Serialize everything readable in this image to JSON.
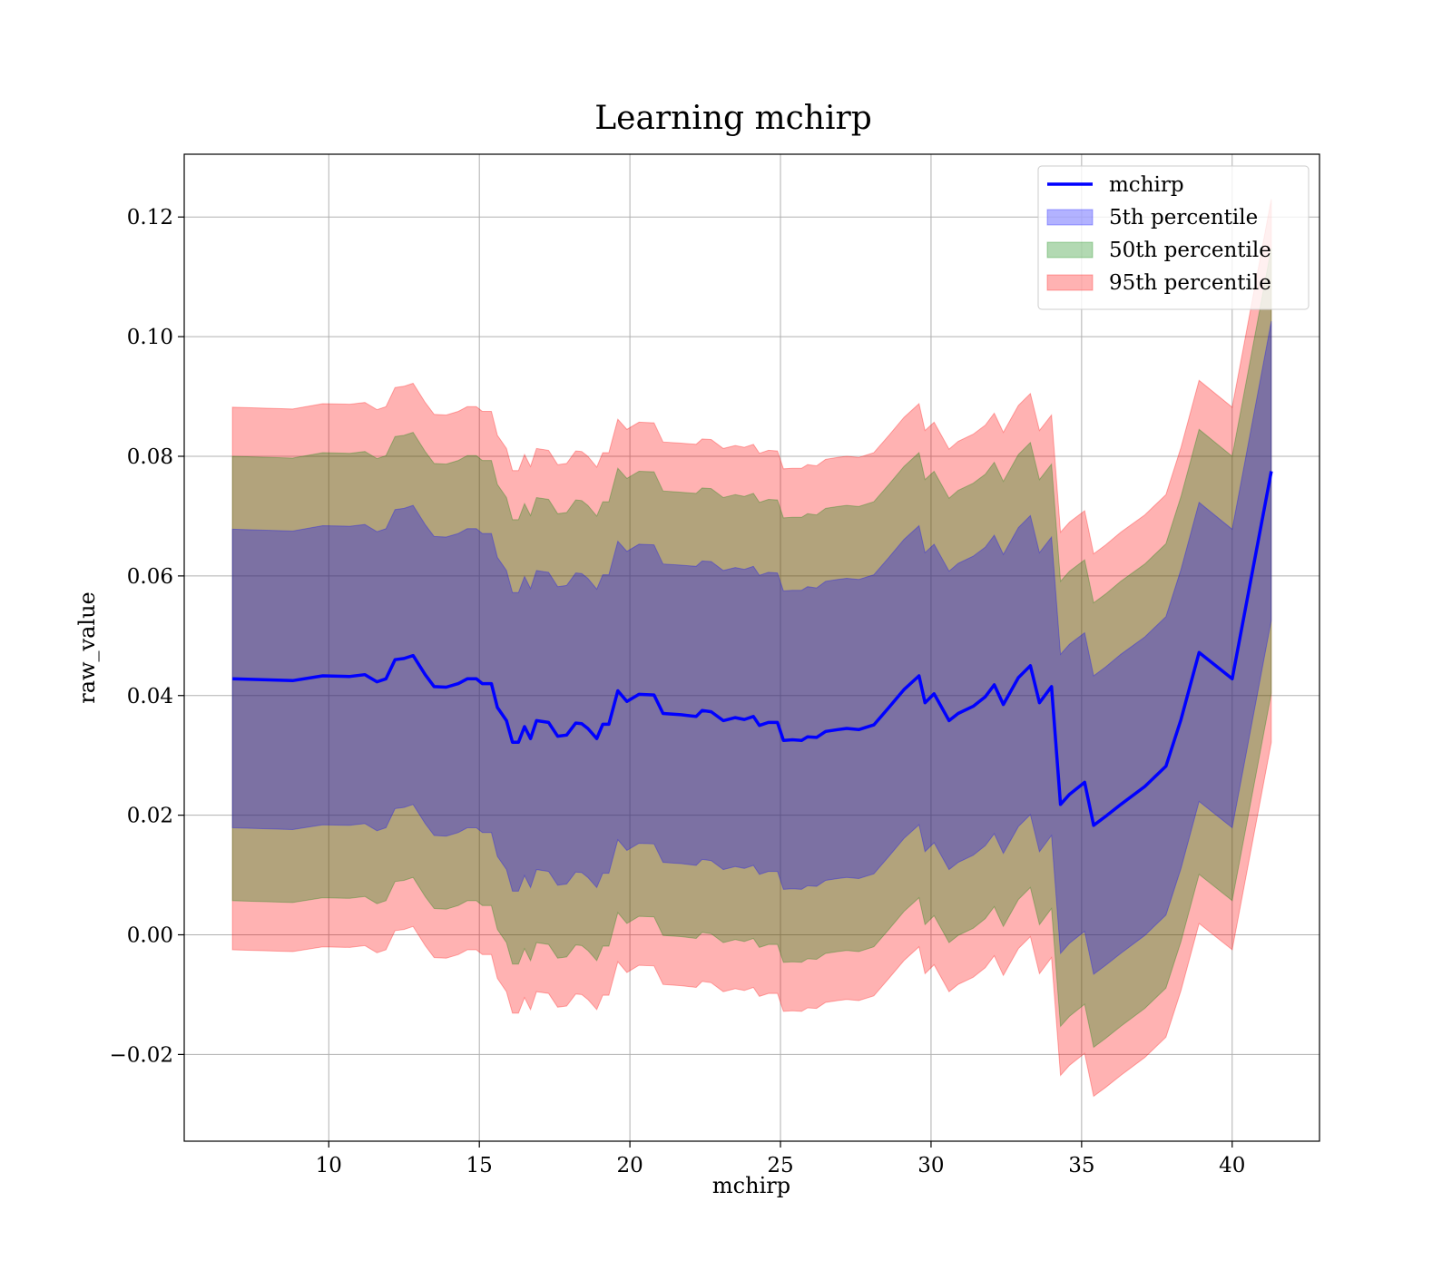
{
  "chart_data": {
    "type": "area",
    "title": "Learning mchirp",
    "xlabel": "mchirp",
    "ylabel": "raw_value",
    "xlim": [
      5.2,
      42.9
    ],
    "ylim": [
      -0.0345,
      0.1305
    ],
    "xticks": [
      10,
      15,
      20,
      25,
      30,
      35,
      40
    ],
    "yticks": [
      -0.02,
      0.0,
      0.02,
      0.04,
      0.06,
      0.08,
      0.1,
      0.12
    ],
    "ytick_labels": [
      "−0.02",
      "0.00",
      "0.02",
      "0.04",
      "0.06",
      "0.08",
      "0.10",
      "0.12"
    ],
    "grid": true,
    "legend_position": "top-right",
    "colors": {
      "line": "#0000ff",
      "band5": "#0000ff",
      "band50": "#008000",
      "band95": "#ff0000"
    },
    "band_alpha": 0.3,
    "legend": [
      {
        "key": "line",
        "label": "mchirp"
      },
      {
        "key": "band5",
        "label": "5th percentile"
      },
      {
        "key": "band50",
        "label": "50th percentile"
      },
      {
        "key": "band95",
        "label": "95th percentile"
      }
    ],
    "x": [
      6.8,
      8.8,
      9.8,
      10.7,
      11.2,
      11.6,
      11.9,
      12.2,
      12.5,
      12.8,
      13.2,
      13.5,
      13.9,
      14.3,
      14.6,
      14.9,
      15.1,
      15.4,
      15.6,
      15.9,
      16.1,
      16.3,
      16.5,
      16.7,
      16.9,
      17.3,
      17.6,
      17.9,
      18.2,
      18.4,
      18.6,
      18.9,
      19.1,
      19.3,
      19.6,
      19.9,
      20.3,
      20.8,
      21.1,
      21.7,
      22.2,
      22.4,
      22.7,
      23.1,
      23.5,
      23.8,
      24.1,
      24.3,
      24.6,
      24.9,
      25.1,
      25.4,
      25.7,
      25.9,
      26.2,
      26.5,
      26.9,
      27.2,
      27.6,
      28.1,
      28.6,
      29.1,
      29.6,
      29.8,
      30.1,
      30.6,
      30.9,
      31.4,
      31.8,
      32.1,
      32.4,
      32.9,
      33.3,
      33.6,
      34.0,
      34.3,
      34.6,
      35.1,
      35.4,
      35.8,
      36.3,
      37.1,
      37.8,
      38.3,
      38.9,
      40.0,
      41.3
    ],
    "series": [
      {
        "key": "line",
        "name": "mchirp",
        "values": [
          0.0428,
          0.0425,
          0.0433,
          0.0432,
          0.0435,
          0.0423,
          0.0428,
          0.046,
          0.0462,
          0.0467,
          0.0435,
          0.0415,
          0.0414,
          0.042,
          0.0428,
          0.0428,
          0.042,
          0.042,
          0.038,
          0.0358,
          0.0322,
          0.0322,
          0.0348,
          0.0328,
          0.0358,
          0.0355,
          0.0332,
          0.0334,
          0.0354,
          0.0353,
          0.0345,
          0.0328,
          0.0352,
          0.0352,
          0.0408,
          0.039,
          0.0402,
          0.0401,
          0.037,
          0.0368,
          0.0365,
          0.0375,
          0.0373,
          0.0358,
          0.0363,
          0.036,
          0.0365,
          0.035,
          0.0355,
          0.0355,
          0.0325,
          0.0326,
          0.0325,
          0.0331,
          0.033,
          0.034,
          0.0343,
          0.0345,
          0.0343,
          0.0351,
          0.038,
          0.041,
          0.0433,
          0.0388,
          0.0403,
          0.0358,
          0.037,
          0.0382,
          0.0398,
          0.0418,
          0.0385,
          0.043,
          0.045,
          0.0388,
          0.0415,
          0.0218,
          0.0235,
          0.0255,
          0.0183,
          0.0198,
          0.0218,
          0.0248,
          0.0282,
          0.036,
          0.0472,
          0.0428,
          0.0775
        ]
      },
      {
        "key": "band95",
        "name": "95th percentile",
        "upper": [
          0.0882,
          0.0879,
          0.0888,
          0.0887,
          0.089,
          0.0878,
          0.0883,
          0.0915,
          0.0917,
          0.0922,
          0.089,
          0.087,
          0.0869,
          0.0875,
          0.0883,
          0.0883,
          0.0875,
          0.0875,
          0.0835,
          0.0813,
          0.0776,
          0.0776,
          0.0803,
          0.0783,
          0.0813,
          0.081,
          0.0786,
          0.0788,
          0.0809,
          0.0808,
          0.08,
          0.0782,
          0.0806,
          0.0806,
          0.0862,
          0.0845,
          0.0857,
          0.0856,
          0.0824,
          0.0822,
          0.082,
          0.0829,
          0.0828,
          0.0813,
          0.0818,
          0.0815,
          0.082,
          0.0805,
          0.081,
          0.0809,
          0.0779,
          0.078,
          0.078,
          0.0786,
          0.0784,
          0.0795,
          0.0798,
          0.08,
          0.0798,
          0.0806,
          0.0835,
          0.0865,
          0.0888,
          0.0843,
          0.0857,
          0.0812,
          0.0825,
          0.0837,
          0.0852,
          0.0872,
          0.084,
          0.0885,
          0.0905,
          0.0843,
          0.0869,
          0.0673,
          0.069,
          0.0709,
          0.0637,
          0.0652,
          0.0673,
          0.0702,
          0.0736,
          0.0815,
          0.0927,
          0.0882,
          0.123
        ],
        "lower": [
          -0.0025,
          -0.0028,
          -0.002,
          -0.0021,
          -0.0018,
          -0.003,
          -0.0025,
          0.0007,
          0.0009,
          0.0014,
          -0.0018,
          -0.0038,
          -0.0039,
          -0.0033,
          -0.0025,
          -0.0025,
          -0.0033,
          -0.0033,
          -0.0073,
          -0.0095,
          -0.0131,
          -0.0131,
          -0.0105,
          -0.0125,
          -0.0095,
          -0.0098,
          -0.0121,
          -0.0119,
          -0.0099,
          -0.01,
          -0.0108,
          -0.0125,
          -0.0101,
          -0.0101,
          -0.0045,
          -0.0063,
          -0.0051,
          -0.0052,
          -0.0083,
          -0.0085,
          -0.0088,
          -0.0078,
          -0.008,
          -0.0095,
          -0.009,
          -0.0093,
          -0.0088,
          -0.0103,
          -0.0098,
          -0.0098,
          -0.0128,
          -0.0127,
          -0.0128,
          -0.0122,
          -0.0123,
          -0.0113,
          -0.011,
          -0.0108,
          -0.011,
          -0.0102,
          -0.0073,
          -0.0043,
          -0.002,
          -0.0065,
          -0.005,
          -0.0095,
          -0.0083,
          -0.0071,
          -0.0055,
          -0.0035,
          -0.0068,
          -0.0023,
          -0.0003,
          -0.0065,
          -0.0038,
          -0.0235,
          -0.0218,
          -0.0198,
          -0.027,
          -0.0255,
          -0.0235,
          -0.0205,
          -0.0171,
          -0.0093,
          0.0019,
          -0.0025,
          0.0322
        ]
      },
      {
        "key": "band50",
        "name": "50th percentile",
        "upper": [
          0.08,
          0.0797,
          0.0806,
          0.0805,
          0.0808,
          0.0796,
          0.0801,
          0.0833,
          0.0835,
          0.084,
          0.0808,
          0.0788,
          0.0787,
          0.0793,
          0.0801,
          0.0801,
          0.0793,
          0.0793,
          0.0753,
          0.0731,
          0.0694,
          0.0694,
          0.0721,
          0.0701,
          0.0731,
          0.0728,
          0.0704,
          0.0706,
          0.0727,
          0.0726,
          0.0718,
          0.07,
          0.0724,
          0.0724,
          0.078,
          0.0763,
          0.0775,
          0.0774,
          0.0742,
          0.074,
          0.0738,
          0.0747,
          0.0746,
          0.0731,
          0.0736,
          0.0733,
          0.0738,
          0.0723,
          0.0728,
          0.0727,
          0.0697,
          0.0698,
          0.0698,
          0.0704,
          0.0702,
          0.0713,
          0.0716,
          0.0718,
          0.0716,
          0.0724,
          0.0753,
          0.0783,
          0.0806,
          0.0761,
          0.0775,
          0.073,
          0.0743,
          0.0755,
          0.077,
          0.079,
          0.0758,
          0.0803,
          0.0823,
          0.0761,
          0.0787,
          0.0591,
          0.0608,
          0.0627,
          0.0555,
          0.057,
          0.0591,
          0.062,
          0.0654,
          0.0733,
          0.0845,
          0.08,
          0.1148
        ],
        "lower": [
          0.0057,
          0.0054,
          0.0062,
          0.0061,
          0.0064,
          0.0052,
          0.0057,
          0.0089,
          0.0091,
          0.0096,
          0.0064,
          0.0044,
          0.0043,
          0.0049,
          0.0057,
          0.0057,
          0.0049,
          0.0049,
          0.0009,
          -0.0013,
          -0.0049,
          -0.0049,
          -0.0023,
          -0.0043,
          -0.0013,
          -0.0016,
          -0.0039,
          -0.0037,
          -0.0017,
          -0.0018,
          -0.0026,
          -0.0043,
          -0.0019,
          -0.0019,
          0.0037,
          0.0019,
          0.0031,
          0.003,
          -0.0001,
          -0.0003,
          -0.0006,
          0.0004,
          0.0002,
          -0.0013,
          -0.0008,
          -0.0011,
          -0.0006,
          -0.0021,
          -0.0016,
          -0.0016,
          -0.0046,
          -0.0045,
          -0.0046,
          -0.004,
          -0.0041,
          -0.0031,
          -0.0028,
          -0.0026,
          -0.0028,
          -0.002,
          0.0009,
          0.0039,
          0.0062,
          0.0017,
          0.0032,
          -0.0013,
          -0.0001,
          0.0011,
          0.0027,
          0.0047,
          0.0014,
          0.0059,
          0.0079,
          0.0017,
          0.0044,
          -0.0153,
          -0.0136,
          -0.0116,
          -0.0188,
          -0.0173,
          -0.0153,
          -0.0123,
          -0.0089,
          -0.0011,
          0.0101,
          0.0057,
          0.0404
        ]
      },
      {
        "key": "band5",
        "name": "5th percentile",
        "upper": [
          0.0678,
          0.0675,
          0.0684,
          0.0683,
          0.0686,
          0.0674,
          0.0679,
          0.0711,
          0.0713,
          0.0718,
          0.0686,
          0.0666,
          0.0665,
          0.0671,
          0.0679,
          0.0679,
          0.0671,
          0.0671,
          0.0631,
          0.0609,
          0.0572,
          0.0572,
          0.0599,
          0.0579,
          0.0609,
          0.0606,
          0.0582,
          0.0584,
          0.0605,
          0.0604,
          0.0596,
          0.0578,
          0.0602,
          0.0602,
          0.0658,
          0.0641,
          0.0653,
          0.0652,
          0.062,
          0.0618,
          0.0616,
          0.0625,
          0.0624,
          0.0609,
          0.0614,
          0.0611,
          0.0616,
          0.0601,
          0.0606,
          0.0605,
          0.0575,
          0.0576,
          0.0576,
          0.0582,
          0.058,
          0.0591,
          0.0594,
          0.0596,
          0.0594,
          0.0602,
          0.0631,
          0.0661,
          0.0684,
          0.0639,
          0.0653,
          0.0608,
          0.0621,
          0.0633,
          0.0648,
          0.0668,
          0.0636,
          0.0681,
          0.0701,
          0.0639,
          0.0665,
          0.0469,
          0.0486,
          0.0505,
          0.0433,
          0.0448,
          0.0469,
          0.0498,
          0.0532,
          0.0611,
          0.0723,
          0.0678,
          0.1026
        ],
        "lower": [
          0.0179,
          0.0176,
          0.0184,
          0.0183,
          0.0186,
          0.0174,
          0.0179,
          0.0211,
          0.0213,
          0.0218,
          0.0186,
          0.0166,
          0.0165,
          0.0171,
          0.0179,
          0.0179,
          0.0171,
          0.0171,
          0.0131,
          0.0109,
          0.0073,
          0.0073,
          0.0099,
          0.0079,
          0.0109,
          0.0106,
          0.0083,
          0.0085,
          0.0105,
          0.0104,
          0.0096,
          0.0079,
          0.0103,
          0.0103,
          0.0159,
          0.0141,
          0.0153,
          0.0152,
          0.0121,
          0.0119,
          0.0116,
          0.0126,
          0.0124,
          0.0109,
          0.0114,
          0.0111,
          0.0116,
          0.0101,
          0.0106,
          0.0106,
          0.0076,
          0.0077,
          0.0076,
          0.0082,
          0.0081,
          0.0091,
          0.0094,
          0.0096,
          0.0094,
          0.0102,
          0.0131,
          0.0161,
          0.0184,
          0.0139,
          0.0154,
          0.0109,
          0.0121,
          0.0133,
          0.0149,
          0.0169,
          0.0136,
          0.0181,
          0.0201,
          0.0139,
          0.0166,
          -0.0031,
          -0.0014,
          0.0006,
          -0.0066,
          -0.0051,
          -0.0031,
          -0.0001,
          0.0033,
          0.0111,
          0.0223,
          0.0179,
          0.0526
        ]
      }
    ]
  }
}
